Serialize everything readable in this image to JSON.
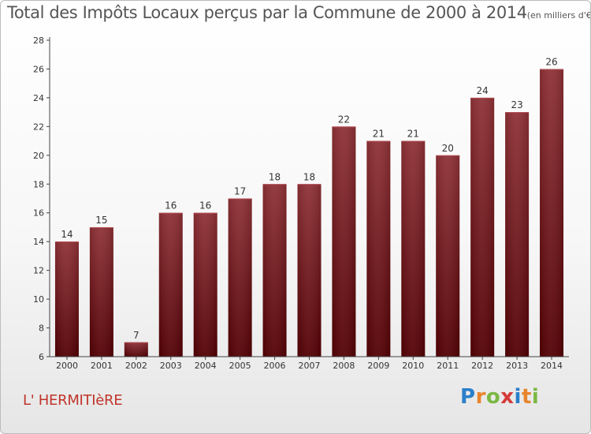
{
  "header": {
    "title": "Total des Impôts Locaux perçus par la Commune de 2000 à 2014",
    "unit": "(en milliers d'€)"
  },
  "commune": "L' HERMITIèRE",
  "logo": {
    "text": "Proxiti",
    "letters": [
      {
        "ch": "P",
        "color": "#2a7fc9"
      },
      {
        "ch": "r",
        "color": "#e8842c"
      },
      {
        "ch": "o",
        "color": "#7bb843"
      },
      {
        "ch": "x",
        "color": "#d63a3a"
      },
      {
        "ch": "i",
        "color": "#2a7fc9"
      },
      {
        "ch": "t",
        "color": "#e8842c"
      },
      {
        "ch": "i",
        "color": "#7bb843"
      }
    ]
  },
  "colors": {
    "bar_top": "#8e3136",
    "bar_bottom": "#520004",
    "axis": "#444444",
    "grid": "#dddddd",
    "text": "#333333"
  },
  "chart_data": {
    "type": "bar",
    "title": "Total des Impôts Locaux perçus par la Commune de 2000 à 2014",
    "xlabel": "",
    "ylabel": "",
    "ylim": [
      6,
      28
    ],
    "yticks": [
      6,
      8,
      10,
      12,
      14,
      16,
      18,
      20,
      22,
      24,
      26,
      28
    ],
    "categories": [
      "2000",
      "2001",
      "2002",
      "2003",
      "2004",
      "2005",
      "2006",
      "2007",
      "2008",
      "2009",
      "2010",
      "2011",
      "2012",
      "2013",
      "2014"
    ],
    "values": [
      14,
      15,
      7,
      16,
      16,
      17,
      18,
      18,
      22,
      21,
      21,
      20,
      24,
      23,
      26
    ]
  }
}
